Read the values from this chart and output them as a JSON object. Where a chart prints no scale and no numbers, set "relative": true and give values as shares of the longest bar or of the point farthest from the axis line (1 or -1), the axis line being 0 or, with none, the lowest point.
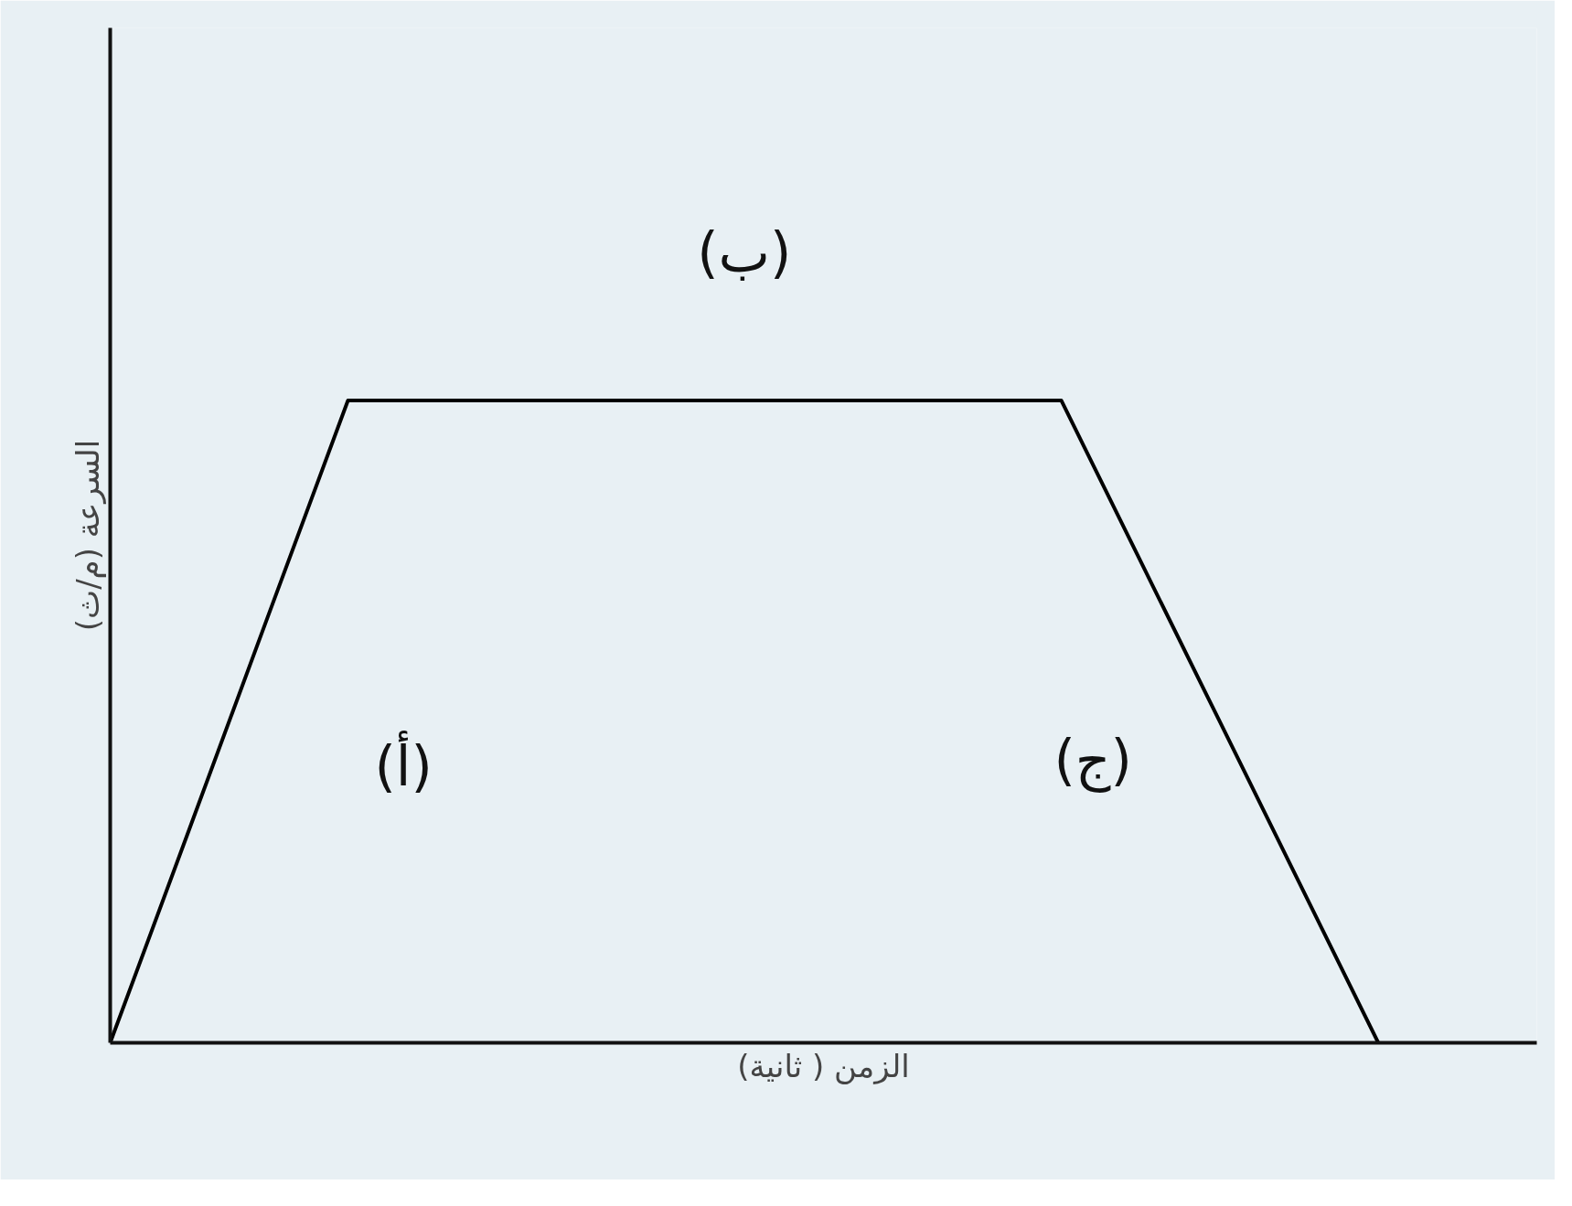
{
  "chart_data": {
    "type": "line",
    "relative": true,
    "xlabel": "الزمن ( ثانية)",
    "ylabel": "السرعة (م/ث)",
    "categories": [
      null,
      null,
      null,
      null,
      null,
      null,
      null,
      null,
      null,
      null,
      null,
      null,
      null,
      null,
      null,
      null,
      null,
      null,
      null
    ],
    "series": [
      {
        "color": "#000000",
        "values": [
          0,
          0.333,
          0.667,
          1,
          1,
          1,
          1,
          1,
          1,
          1,
          1,
          1,
          1,
          0.75,
          0.5,
          0.25,
          0,
          null,
          null
        ]
      }
    ],
    "annotations": [
      "(أ)",
      "(ب)",
      "(ج)"
    ]
  }
}
